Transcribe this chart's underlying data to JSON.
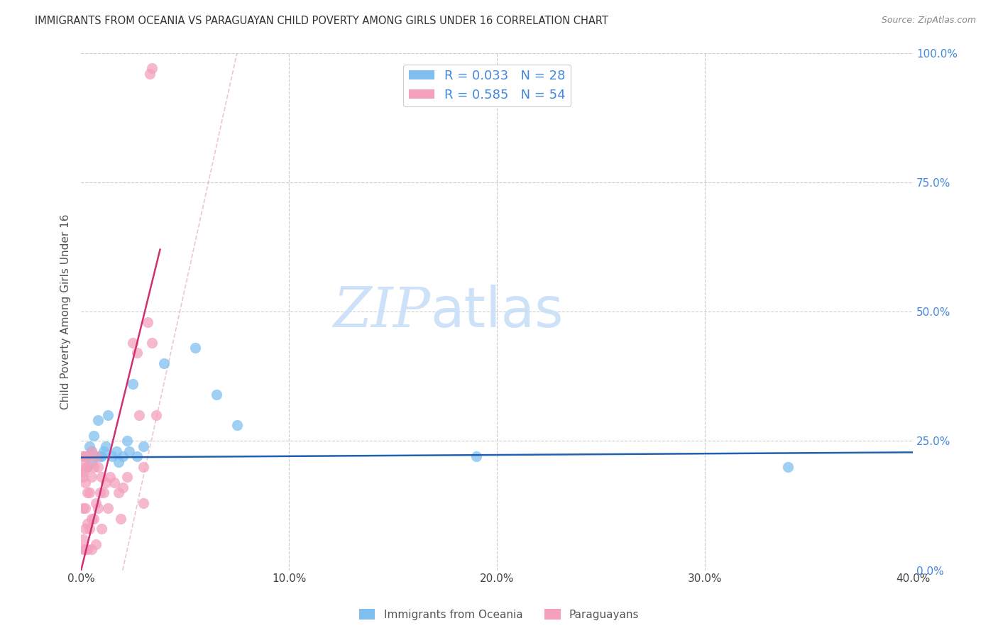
{
  "title": "IMMIGRANTS FROM OCEANIA VS PARAGUAYAN CHILD POVERTY AMONG GIRLS UNDER 16 CORRELATION CHART",
  "source": "Source: ZipAtlas.com",
  "ylabel": "Child Poverty Among Girls Under 16",
  "xlim": [
    0.0,
    0.4
  ],
  "ylim": [
    0.0,
    1.0
  ],
  "xticks": [
    0.0,
    0.1,
    0.2,
    0.3,
    0.4
  ],
  "xtick_labels": [
    "0.0%",
    "10.0%",
    "20.0%",
    "30.0%",
    "40.0%"
  ],
  "yticks": [
    0.0,
    0.25,
    0.5,
    0.75,
    1.0
  ],
  "ytick_labels": [
    "0.0%",
    "25.0%",
    "50.0%",
    "75.0%",
    "100.0%"
  ],
  "blue_color": "#7fbfef",
  "pink_color": "#f4a0bc",
  "blue_line_color": "#2060b0",
  "pink_line_color": "#d03070",
  "legend_blue_label": "R = 0.033   N = 28",
  "legend_pink_label": "R = 0.585   N = 54",
  "legend_label_blue": "Immigrants from Oceania",
  "legend_label_pink": "Paraguayans",
  "watermark": "ZIPatlas",
  "blue_scatter_x": [
    0.002,
    0.003,
    0.004,
    0.005,
    0.005,
    0.006,
    0.007,
    0.008,
    0.009,
    0.01,
    0.011,
    0.012,
    0.013,
    0.015,
    0.017,
    0.018,
    0.02,
    0.022,
    0.023,
    0.025,
    0.027,
    0.03,
    0.04,
    0.055,
    0.065,
    0.075,
    0.19,
    0.34
  ],
  "blue_scatter_y": [
    0.22,
    0.2,
    0.24,
    0.21,
    0.23,
    0.26,
    0.22,
    0.29,
    0.22,
    0.22,
    0.23,
    0.24,
    0.3,
    0.22,
    0.23,
    0.21,
    0.22,
    0.25,
    0.23,
    0.36,
    0.22,
    0.24,
    0.4,
    0.43,
    0.34,
    0.28,
    0.22,
    0.2
  ],
  "pink_scatter_x": [
    0.0005,
    0.0005,
    0.0008,
    0.001,
    0.001,
    0.001,
    0.001,
    0.0015,
    0.002,
    0.002,
    0.002,
    0.002,
    0.002,
    0.0025,
    0.003,
    0.003,
    0.003,
    0.003,
    0.004,
    0.004,
    0.004,
    0.005,
    0.005,
    0.005,
    0.005,
    0.006,
    0.006,
    0.007,
    0.007,
    0.007,
    0.008,
    0.008,
    0.009,
    0.01,
    0.01,
    0.011,
    0.012,
    0.013,
    0.014,
    0.016,
    0.018,
    0.019,
    0.02,
    0.022,
    0.025,
    0.027,
    0.028,
    0.03,
    0.03,
    0.032,
    0.033,
    0.034,
    0.034,
    0.036
  ],
  "pink_scatter_y": [
    0.2,
    0.22,
    0.19,
    0.04,
    0.06,
    0.12,
    0.18,
    0.22,
    0.04,
    0.08,
    0.12,
    0.17,
    0.22,
    0.2,
    0.04,
    0.09,
    0.15,
    0.2,
    0.08,
    0.15,
    0.22,
    0.04,
    0.1,
    0.18,
    0.23,
    0.1,
    0.2,
    0.05,
    0.13,
    0.22,
    0.12,
    0.2,
    0.15,
    0.08,
    0.18,
    0.15,
    0.17,
    0.12,
    0.18,
    0.17,
    0.15,
    0.1,
    0.16,
    0.18,
    0.44,
    0.42,
    0.3,
    0.13,
    0.2,
    0.48,
    0.96,
    0.97,
    0.44,
    0.3
  ],
  "background_color": "#ffffff",
  "grid_color": "#cccccc",
  "title_color": "#333333",
  "axis_label_color": "#555555",
  "right_axis_color": "#4488dd",
  "watermark_color_zip": "#c8dff8",
  "watermark_color_atlas": "#c8dff8",
  "diag_line_color": "#e8b8c8"
}
